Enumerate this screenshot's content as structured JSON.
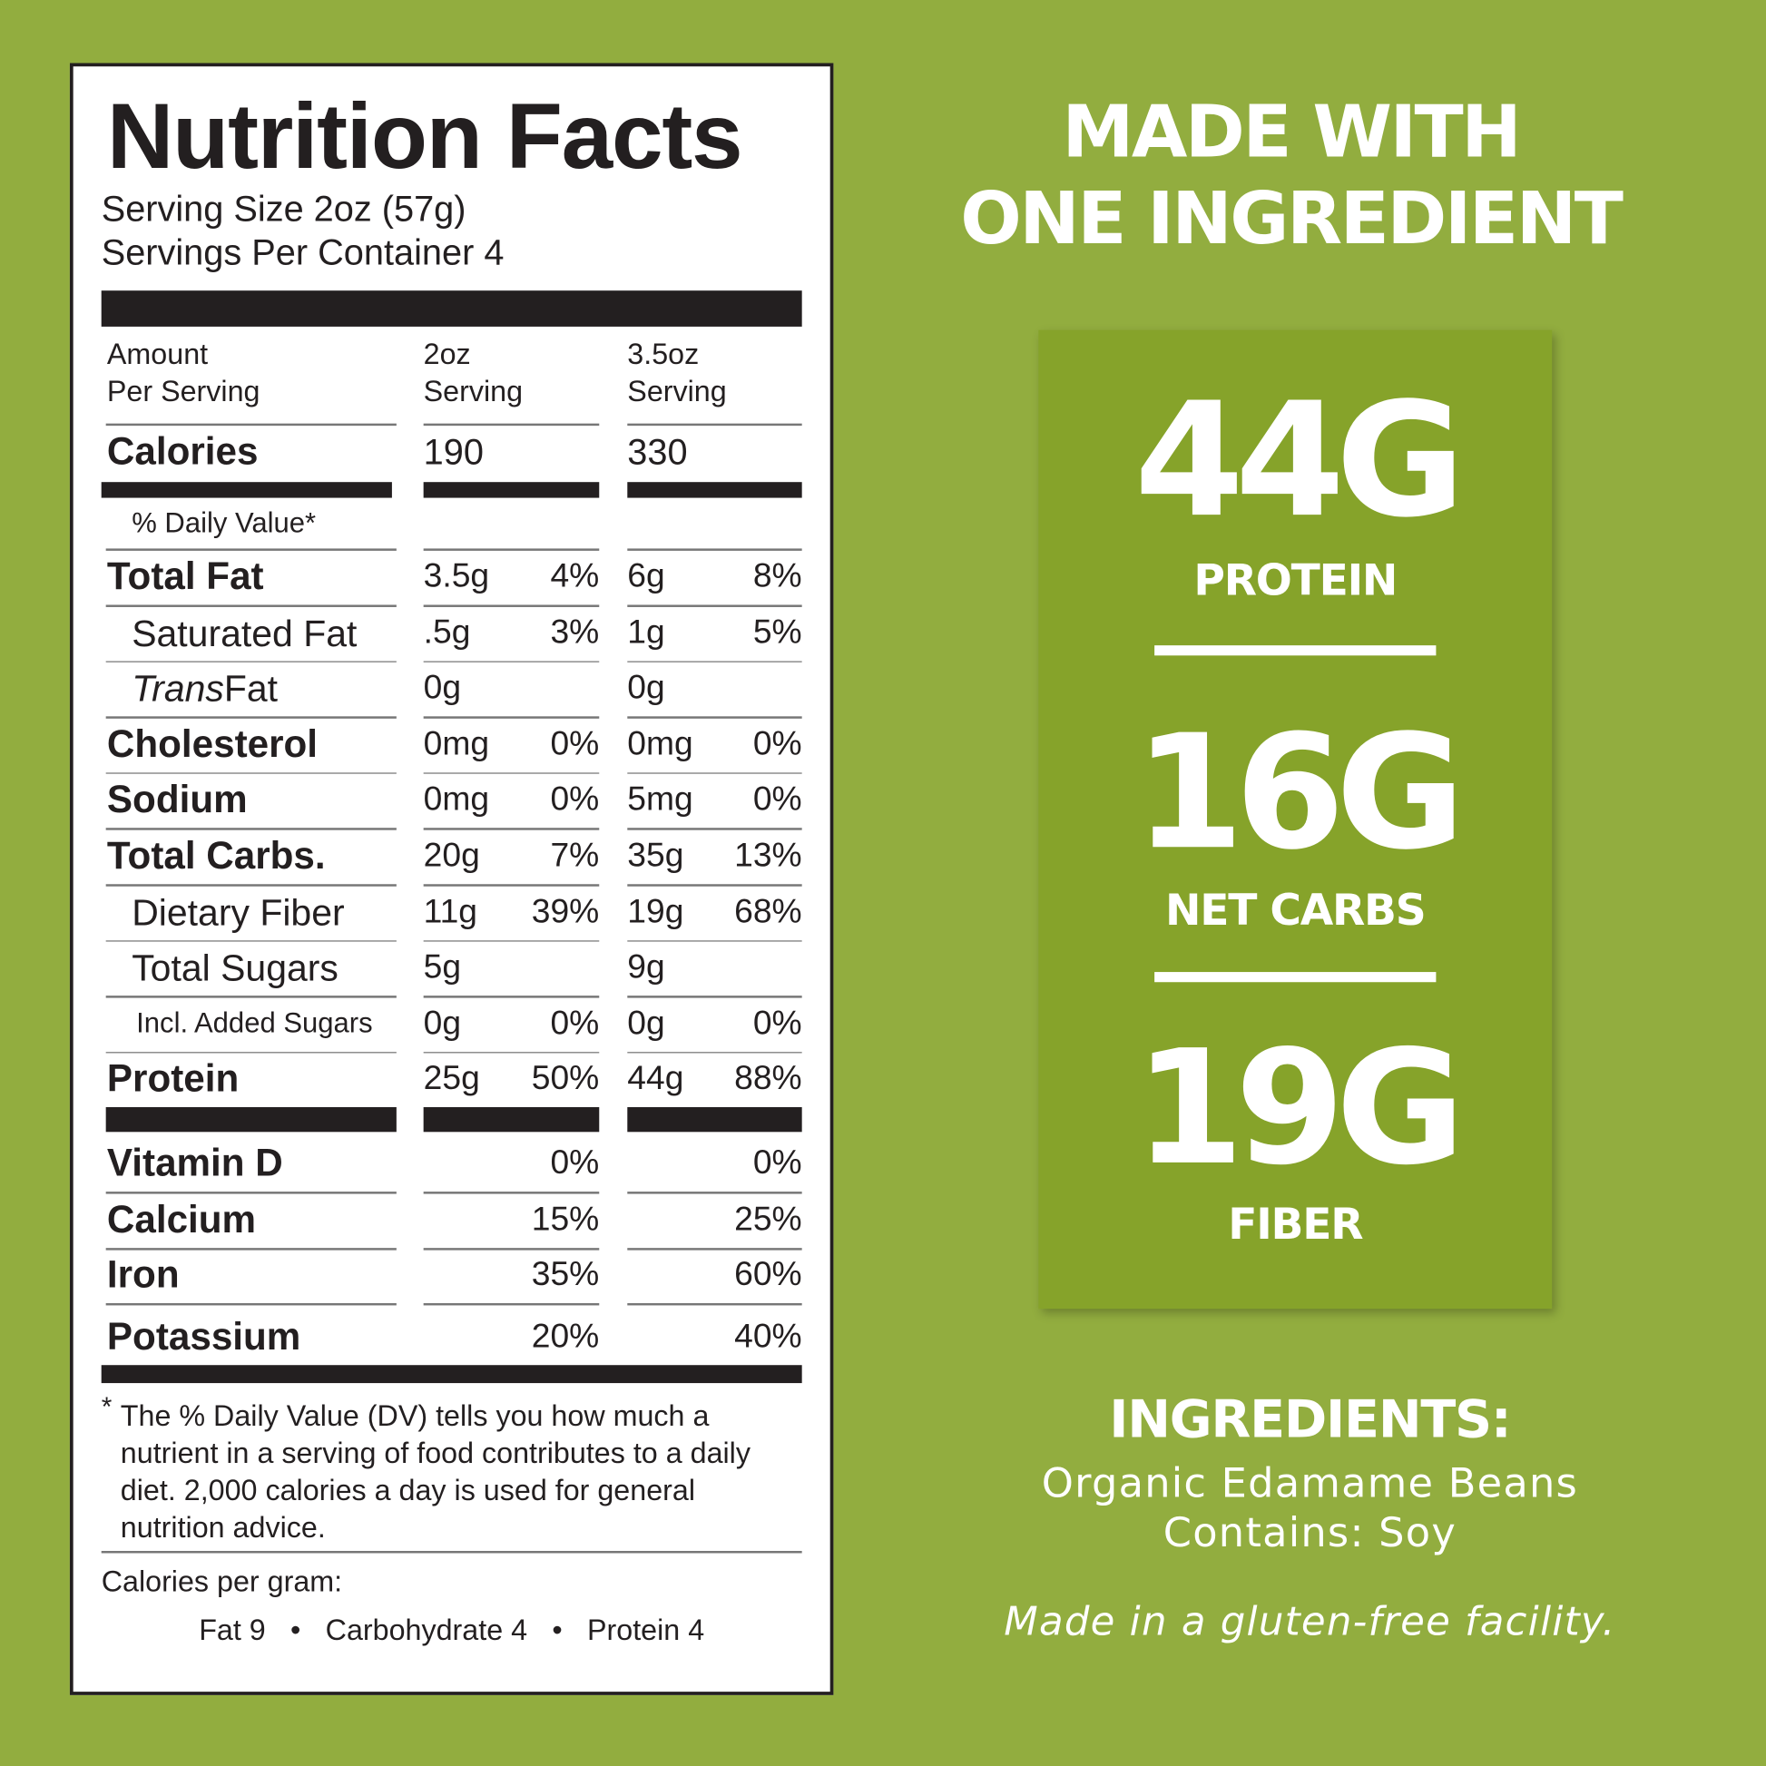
{
  "label": {
    "title": "Nutrition Facts",
    "serving_size": "Serving Size 2oz (57g)",
    "servings_per_container": "Servings Per Container 4",
    "header": [
      [
        "Amount",
        "Per Serving"
      ],
      [
        "2oz",
        "Serving"
      ],
      [
        "3.5oz",
        "Serving"
      ]
    ],
    "calories": {
      "name": "Calories",
      "values": [
        "190",
        "330"
      ]
    },
    "daily_value_header": "% Daily Value*",
    "nutrients": [
      {
        "name": "Total Fat",
        "values": [
          "3.5g",
          "4%",
          "6g",
          "8%"
        ],
        "sub": [
          {
            "name": "Saturated Fat",
            "values": [
              ".5g",
              "3%",
              "1g",
              "5%"
            ]
          },
          {
            "name_italic": "Trans",
            "name": " Fat",
            "values": [
              "0g",
              null,
              "0g",
              null
            ]
          }
        ]
      },
      {
        "name": "Cholesterol",
        "values": [
          "0mg",
          "0%",
          "0mg",
          "0%"
        ]
      },
      {
        "name": "Sodium",
        "values": [
          "0mg",
          "0%",
          "5mg",
          "0%"
        ]
      },
      {
        "name": "Total Carbs.",
        "values": [
          "20g",
          "7%",
          "35g",
          "13%"
        ],
        "sub": [
          {
            "name": "Dietary Fiber",
            "values": [
              "11g",
              "39%",
              "19g",
              "68%"
            ]
          },
          {
            "name": "Total Sugars",
            "values": [
              "5g",
              null,
              "9g",
              null
            ],
            "sub": [
              {
                "name": "Incl. Added Sugars",
                "values": [
                  "0g",
                  "0%",
                  "0g",
                  "0%"
                ]
              }
            ]
          }
        ]
      },
      {
        "name": "Protein",
        "values": [
          "25g",
          "50%",
          "44g",
          "88%"
        ]
      }
    ],
    "vitamins": [
      {
        "name": "Vitamin D",
        "values": [
          "0%",
          "0%"
        ]
      },
      {
        "name": "Calcium",
        "values": [
          "15%",
          "25%"
        ]
      },
      {
        "name": "Iron",
        "values": [
          "35%",
          "60%"
        ]
      },
      {
        "name": "Potassium",
        "values": [
          "20%",
          "40%"
        ]
      }
    ],
    "footnote": {
      "marker": "*",
      "lines": [
        "The % Daily Value (DV) tells you how much a",
        "nutrient in a serving of food contributes to a daily",
        "diet. 2,000 calories a day is used for general",
        "nutrition advice."
      ]
    },
    "calories_per_gram": {
      "label": "Calories per gram:",
      "items": [
        "Fat 9",
        "Carbohydrate 4",
        "Protein 4"
      ]
    }
  },
  "panel": {
    "headline": [
      "MADE WITH",
      "ONE INGREDIENT"
    ],
    "highlights": [
      {
        "value": "44G",
        "label": "PROTEIN"
      },
      {
        "value": "16G",
        "label": "NET CARBS"
      },
      {
        "value": "19G",
        "label": "FIBER"
      }
    ],
    "ingredients": {
      "title": "INGREDIENTS:",
      "lines": [
        "Organic Edamame Beans",
        "Contains: Soy"
      ]
    },
    "note": "Made in a gluten-free facility."
  }
}
